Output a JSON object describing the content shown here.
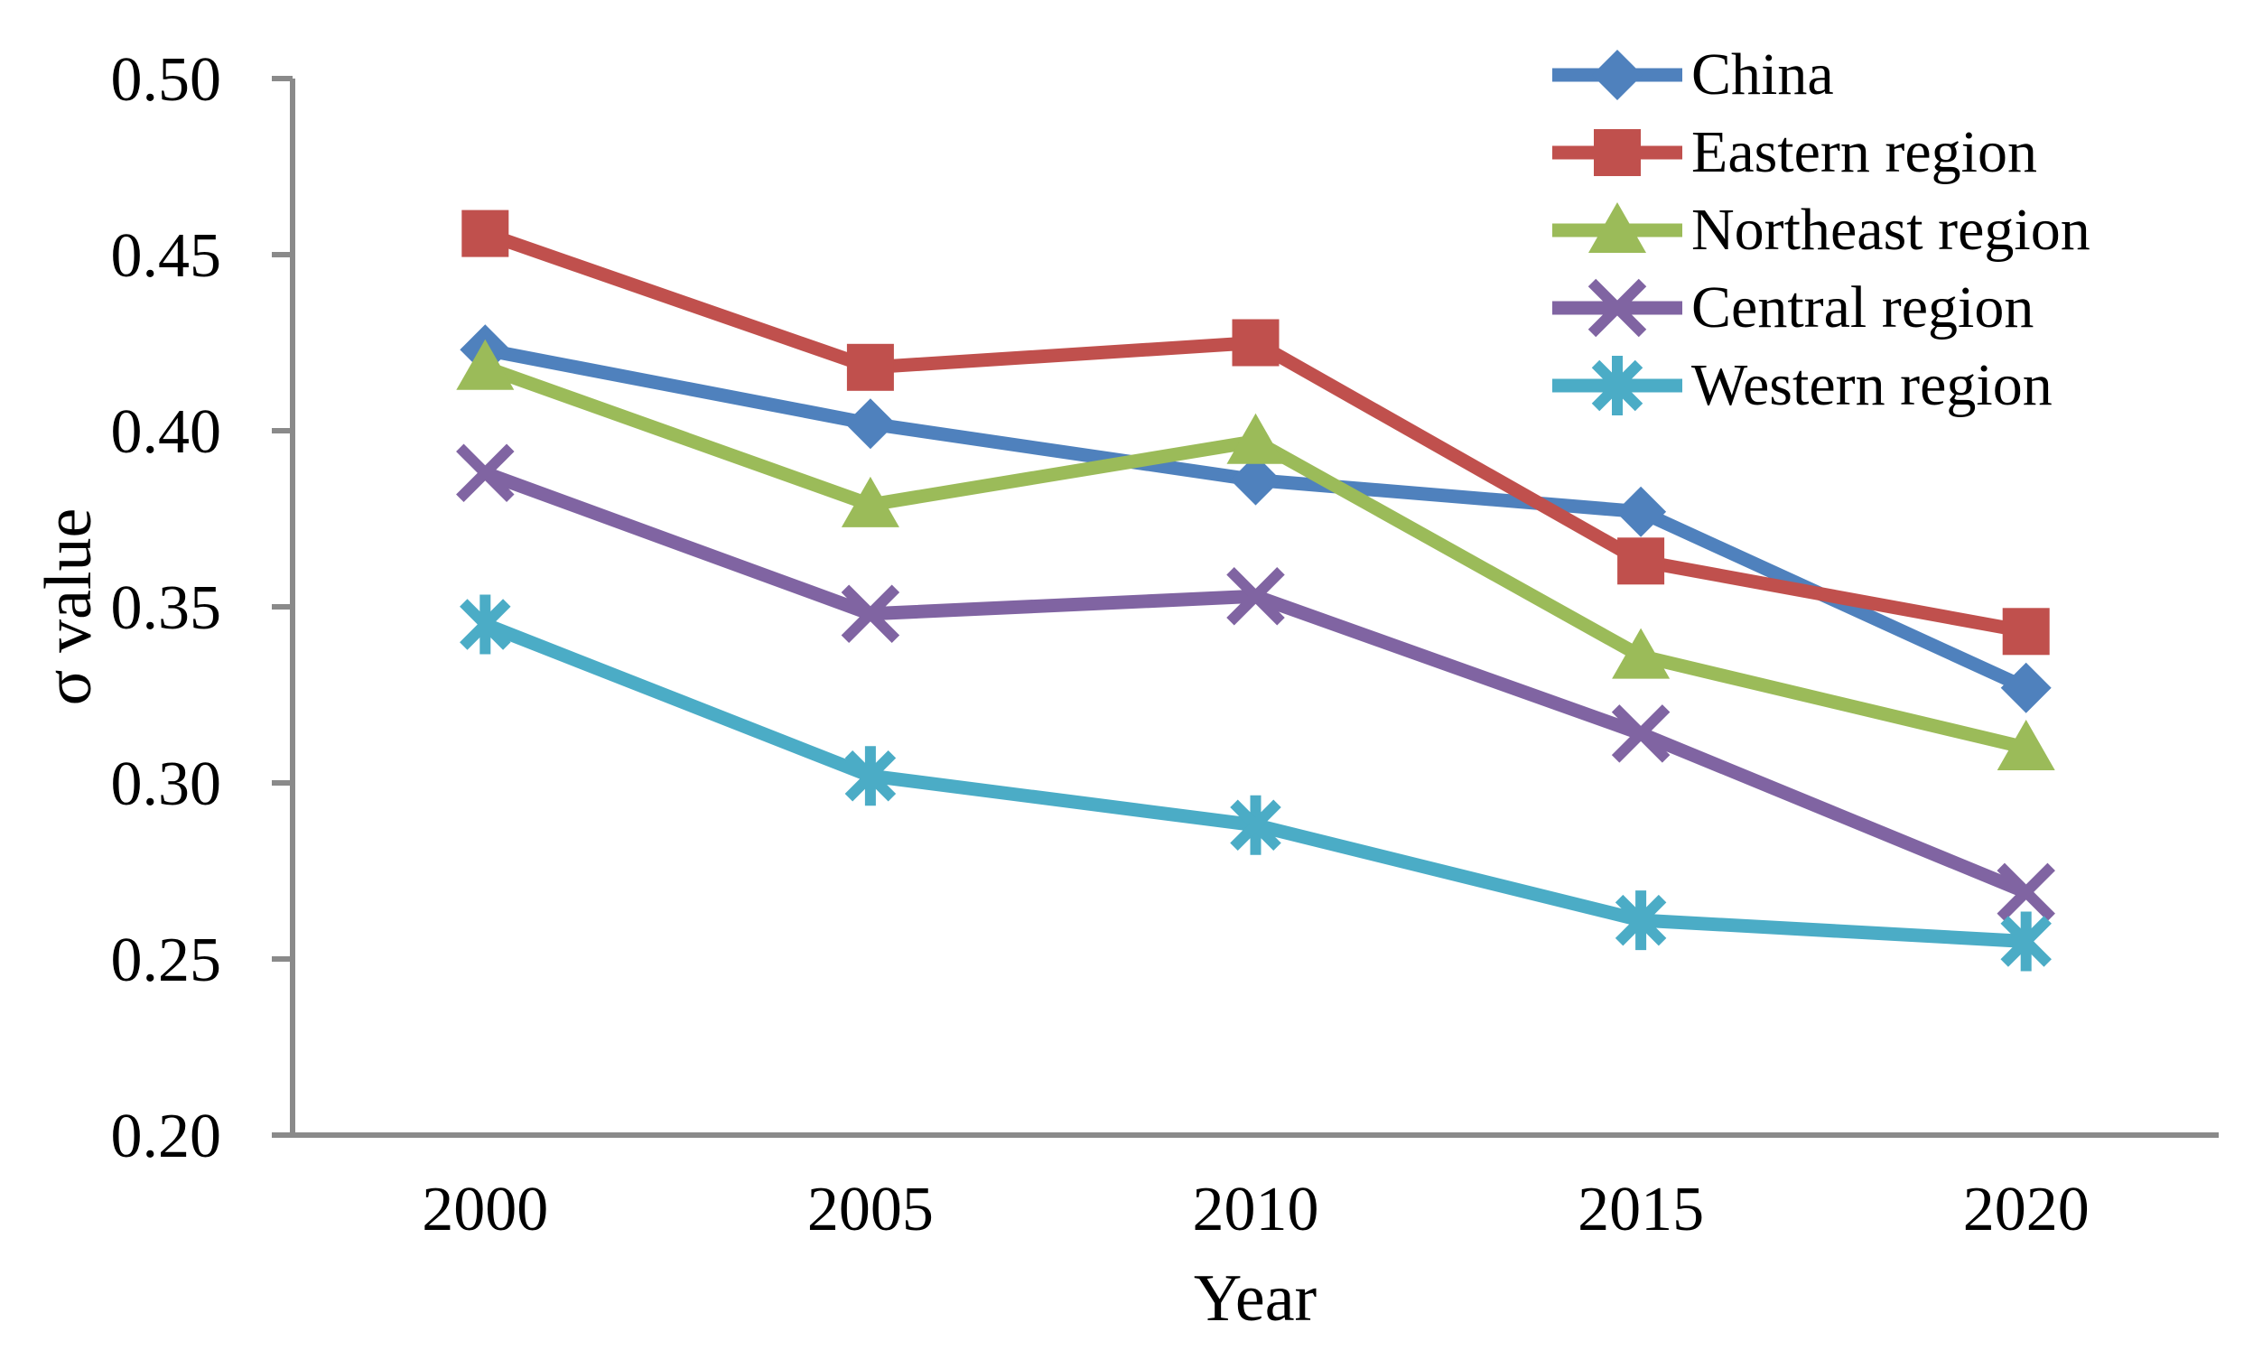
{
  "chart_data": {
    "type": "line",
    "title": "",
    "x": [
      "2000",
      "2005",
      "2010",
      "2015",
      "2020"
    ],
    "xlabel": "Year",
    "ylabel": "σ value",
    "ylim": [
      0.2,
      0.5
    ],
    "ytick_step": 0.05,
    "ytick_labels": [
      "0.50",
      "0.45",
      "0.40",
      "0.35",
      "0.30",
      "0.25",
      "0.20"
    ],
    "grid": false,
    "legend_position": "top-right",
    "axis_color": "#8a8a8a",
    "text_color": "#000000",
    "series": [
      {
        "name": "China",
        "marker": "diamond",
        "color": "#4F81BD",
        "values": [
          0.423,
          0.402,
          0.386,
          0.377,
          0.327
        ]
      },
      {
        "name": "Eastern region",
        "marker": "square",
        "color": "#C0504D",
        "values": [
          0.456,
          0.418,
          0.425,
          0.363,
          0.343
        ]
      },
      {
        "name": "Northeast region",
        "marker": "triangle",
        "color": "#9BBB59",
        "values": [
          0.418,
          0.379,
          0.397,
          0.336,
          0.31
        ]
      },
      {
        "name": "Central region",
        "marker": "x",
        "color": "#8064A2",
        "values": [
          0.388,
          0.348,
          0.353,
          0.314,
          0.269
        ]
      },
      {
        "name": "Western region",
        "marker": "asterisk",
        "color": "#4BACC6",
        "values": [
          0.345,
          0.302,
          0.288,
          0.261,
          0.255
        ]
      }
    ]
  }
}
